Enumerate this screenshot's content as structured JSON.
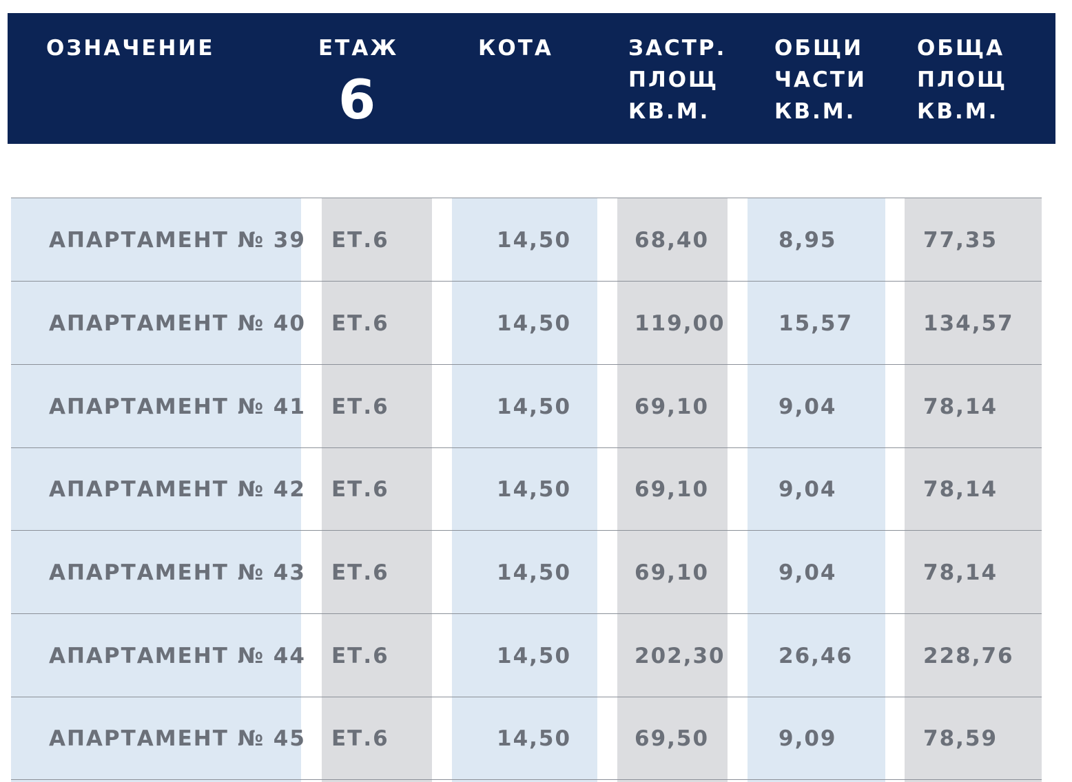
{
  "header": {
    "col_designation": "ОЗНАЧЕНИЕ",
    "col_floor": "ЕТАЖ",
    "floor_number": "6",
    "col_level": "КОТА",
    "col_built_area": "ЗАСТР.\nПЛОЩ\nКВ.М.",
    "col_common_parts": "ОБЩИ\nЧАСТИ\nКВ.М.",
    "col_total_area": "ОБЩА\nПЛОЩ\nКВ.М."
  },
  "colors": {
    "header_bg": "#0c2455",
    "band_blue": "#dde8f3",
    "band_gray": "#dcdde0",
    "text": "#6b7079"
  },
  "rows": [
    {
      "name": "АПАРТАМЕНТ № 39",
      "floor": "ЕТ.6",
      "level": "14,50",
      "built": "68,40",
      "common": "8,95",
      "total": "77,35"
    },
    {
      "name": "АПАРТАМЕНТ № 40",
      "floor": "ЕТ.6",
      "level": "14,50",
      "built": "119,00",
      "common": "15,57",
      "total": "134,57"
    },
    {
      "name": "АПАРТАМЕНТ № 41",
      "floor": "ЕТ.6",
      "level": "14,50",
      "built": "69,10",
      "common": "9,04",
      "total": "78,14"
    },
    {
      "name": "АПАРТАМЕНТ № 42",
      "floor": "ЕТ.6",
      "level": "14,50",
      "built": "69,10",
      "common": "9,04",
      "total": "78,14"
    },
    {
      "name": "АПАРТАМЕНТ № 43",
      "floor": "ЕТ.6",
      "level": "14,50",
      "built": "69,10",
      "common": "9,04",
      "total": "78,14"
    },
    {
      "name": "АПАРТАМЕНТ № 44",
      "floor": "ЕТ.6",
      "level": "14,50",
      "built": "202,30",
      "common": "26,46",
      "total": "228,76"
    },
    {
      "name": "АПАРТАМЕНТ № 45",
      "floor": "ЕТ.6",
      "level": "14,50",
      "built": "69,50",
      "common": "9,09",
      "total": "78,59"
    }
  ]
}
